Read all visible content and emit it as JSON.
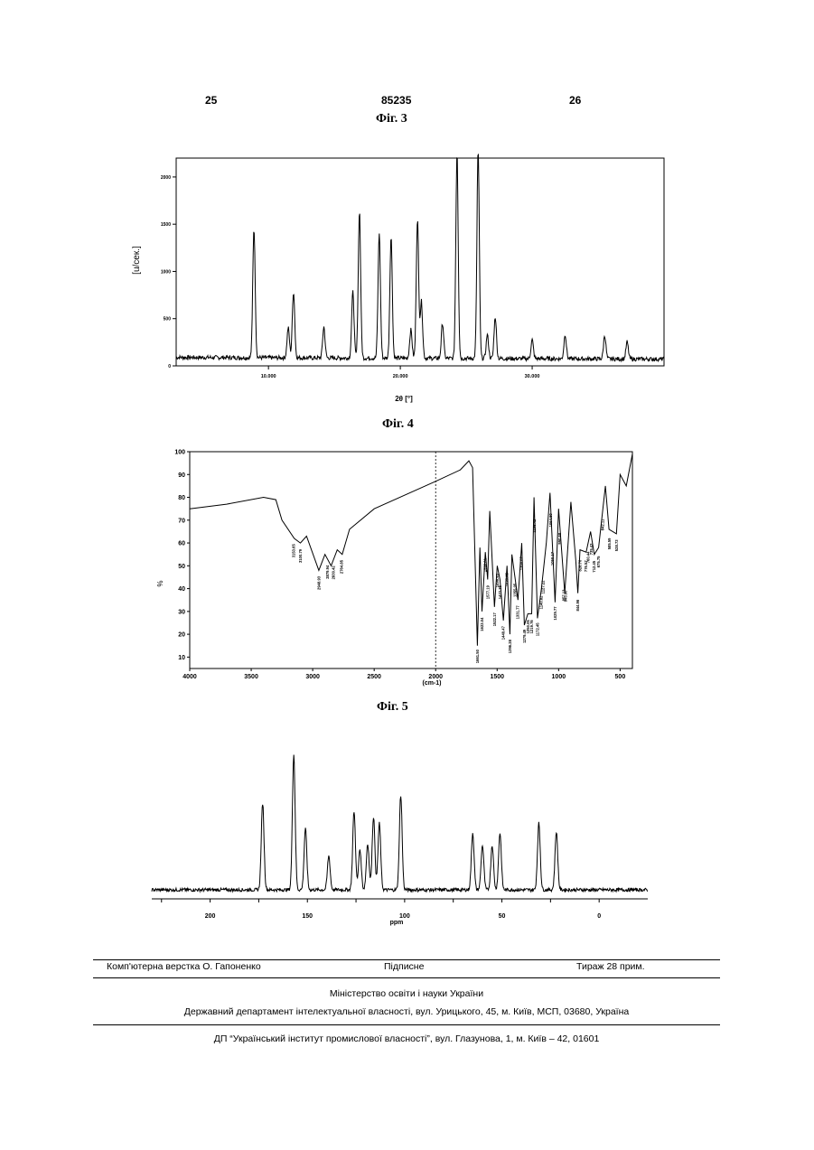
{
  "header": {
    "page_left": "25",
    "patent_number": "85235",
    "page_right": "26"
  },
  "fig3": {
    "caption": "Фіг. 3",
    "ylabel": "[u/сек.]",
    "xlabel": "2θ [°]",
    "y_ticks": [
      "2000",
      "1500",
      "1000",
      "500",
      "0"
    ],
    "x_ticks": [
      "10.000",
      "20.000",
      "30.000"
    ]
  },
  "fig4": {
    "caption": "Фіг. 4",
    "ylabel": "%",
    "xlabel": "(cm-1)",
    "y_ticks": [
      "100",
      "90",
      "80",
      "70",
      "60",
      "50",
      "40",
      "30",
      "20",
      "10"
    ],
    "x_ticks": [
      "4000",
      "3500",
      "3000",
      "2500",
      "2000",
      "1500",
      "1000",
      "500"
    ]
  },
  "fig5": {
    "caption": "Фіг. 5",
    "xlabel": "ppm",
    "x_ticks": [
      "200",
      "150",
      "100",
      "50",
      "0"
    ]
  },
  "footer": {
    "layout": "Комп'ютерна верстка О. Гапоненко",
    "signed": "Підписне",
    "circulation": "Тираж 28 прим.",
    "ministry": "Міністерство освіти і науки України",
    "department": "Державний департамент інтелектуальної власності, вул. Урицького, 45, м. Київ, МСП, 03680, Україна",
    "institute": "ДП “Український інститут промислової власності”, вул. Глазунова, 1, м. Київ – 42, 01601"
  },
  "chart_data": [
    {
      "type": "line",
      "title": "Фіг. 3",
      "xlabel": "2θ [°]",
      "ylabel": "[u/сек.]",
      "xlim": [
        3,
        40
      ],
      "ylim": [
        0,
        2200
      ],
      "grid": false,
      "series": [
        {
          "peaks": [
            {
              "x": 8.9,
              "y": 1370
            },
            {
              "x": 11.5,
              "y": 320
            },
            {
              "x": 11.9,
              "y": 700
            },
            {
              "x": 14.2,
              "y": 330
            },
            {
              "x": 16.4,
              "y": 700
            },
            {
              "x": 16.9,
              "y": 1560
            },
            {
              "x": 18.4,
              "y": 1330
            },
            {
              "x": 19.3,
              "y": 1280
            },
            {
              "x": 20.8,
              "y": 300
            },
            {
              "x": 21.3,
              "y": 1470
            },
            {
              "x": 21.6,
              "y": 600
            },
            {
              "x": 23.2,
              "y": 370
            },
            {
              "x": 24.3,
              "y": 2180
            },
            {
              "x": 25.9,
              "y": 2200
            },
            {
              "x": 26.6,
              "y": 250
            },
            {
              "x": 27.2,
              "y": 440
            },
            {
              "x": 30.0,
              "y": 200
            },
            {
              "x": 32.5,
              "y": 260
            },
            {
              "x": 35.5,
              "y": 250
            },
            {
              "x": 37.2,
              "y": 180
            }
          ]
        }
      ]
    },
    {
      "type": "line",
      "title": "Фіг. 4",
      "xlabel": "(cm-1)",
      "ylabel": "%",
      "xlim": [
        4000,
        400
      ],
      "ylim": [
        5,
        100
      ],
      "grid": false,
      "series": [
        {
          "points": [
            {
              "x": 4000,
              "y": 75
            },
            {
              "x": 3700,
              "y": 77
            },
            {
              "x": 3400,
              "y": 80
            },
            {
              "x": 3300,
              "y": 79
            },
            {
              "x": 3250,
              "y": 70
            },
            {
              "x": 3150,
              "y": 62
            },
            {
              "x": 3100,
              "y": 60
            },
            {
              "x": 3050,
              "y": 63
            },
            {
              "x": 2950,
              "y": 48
            },
            {
              "x": 2900,
              "y": 55
            },
            {
              "x": 2850,
              "y": 50
            },
            {
              "x": 2800,
              "y": 57
            },
            {
              "x": 2760,
              "y": 55
            },
            {
              "x": 2700,
              "y": 66
            },
            {
              "x": 2500,
              "y": 75
            },
            {
              "x": 2000,
              "y": 87
            },
            {
              "x": 1800,
              "y": 92
            },
            {
              "x": 1730,
              "y": 96
            },
            {
              "x": 1700,
              "y": 93
            },
            {
              "x": 1661,
              "y": 15
            },
            {
              "x": 1640,
              "y": 58
            },
            {
              "x": 1623,
              "y": 30
            },
            {
              "x": 1596,
              "y": 56
            },
            {
              "x": 1577,
              "y": 44
            },
            {
              "x": 1560,
              "y": 74
            },
            {
              "x": 1522,
              "y": 32
            },
            {
              "x": 1499,
              "y": 50
            },
            {
              "x": 1477,
              "y": 44
            },
            {
              "x": 1449,
              "y": 26
            },
            {
              "x": 1420,
              "y": 50
            },
            {
              "x": 1396,
              "y": 20
            },
            {
              "x": 1380,
              "y": 55
            },
            {
              "x": 1355,
              "y": 45
            },
            {
              "x": 1331,
              "y": 35
            },
            {
              "x": 1300,
              "y": 60
            },
            {
              "x": 1279,
              "y": 24
            },
            {
              "x": 1250,
              "y": 29
            },
            {
              "x": 1219,
              "y": 29
            },
            {
              "x": 1200,
              "y": 80
            },
            {
              "x": 1172,
              "y": 27
            },
            {
              "x": 1140,
              "y": 40
            },
            {
              "x": 1100,
              "y": 60
            },
            {
              "x": 1070,
              "y": 82
            },
            {
              "x": 1029,
              "y": 34
            },
            {
              "x": 1000,
              "y": 75
            },
            {
              "x": 950,
              "y": 38
            },
            {
              "x": 900,
              "y": 78
            },
            {
              "x": 860,
              "y": 52
            },
            {
              "x": 844,
              "y": 38
            },
            {
              "x": 826,
              "y": 57
            },
            {
              "x": 776,
              "y": 56
            },
            {
              "x": 740,
              "y": 65
            },
            {
              "x": 710,
              "y": 55
            },
            {
              "x": 675,
              "y": 58
            },
            {
              "x": 620,
              "y": 85
            },
            {
              "x": 590,
              "y": 66
            },
            {
              "x": 530,
              "y": 64
            },
            {
              "x": 500,
              "y": 90
            },
            {
              "x": 450,
              "y": 85
            },
            {
              "x": 400,
              "y": 99
            }
          ]
        }
      ],
      "peak_labels": [
        "3153.65",
        "3100.79",
        "2948.93",
        "2879.94",
        "2830.42",
        "2764.85",
        "1661.50",
        "1623.04",
        "1596.01",
        "1577.19",
        "1522.17",
        "1499.93",
        "1477.35",
        "1449.47",
        "1420.45",
        "1396.28",
        "1355.05",
        "1331.77",
        "1304.07",
        "1279.49",
        "1250.05",
        "1219.76",
        "1196.42",
        "1172.45",
        "1140.82",
        "1127.22",
        "1064.60",
        "1050.17",
        "1029.77",
        "990.68",
        "957.13",
        "943.90",
        "844.96",
        "826.70",
        "776.57",
        "760.44",
        "735.43",
        "712.45",
        "675.75",
        "642.11",
        "585.59",
        "528.73"
      ]
    },
    {
      "type": "line",
      "title": "Фіг. 5",
      "xlabel": "ppm",
      "xlim": [
        230,
        -25
      ],
      "grid": false,
      "series": [
        {
          "peaks": [
            {
              "x": 173,
              "y": 0.64
            },
            {
              "x": 157,
              "y": 1.0
            },
            {
              "x": 151,
              "y": 0.45
            },
            {
              "x": 139,
              "y": 0.25
            },
            {
              "x": 126,
              "y": 0.58
            },
            {
              "x": 123,
              "y": 0.3
            },
            {
              "x": 119,
              "y": 0.34
            },
            {
              "x": 116,
              "y": 0.54
            },
            {
              "x": 113,
              "y": 0.49
            },
            {
              "x": 102,
              "y": 0.7
            },
            {
              "x": 65,
              "y": 0.42
            },
            {
              "x": 60,
              "y": 0.33
            },
            {
              "x": 55,
              "y": 0.33
            },
            {
              "x": 51,
              "y": 0.42
            },
            {
              "x": 31,
              "y": 0.49
            },
            {
              "x": 22,
              "y": 0.43
            }
          ]
        }
      ]
    }
  ]
}
